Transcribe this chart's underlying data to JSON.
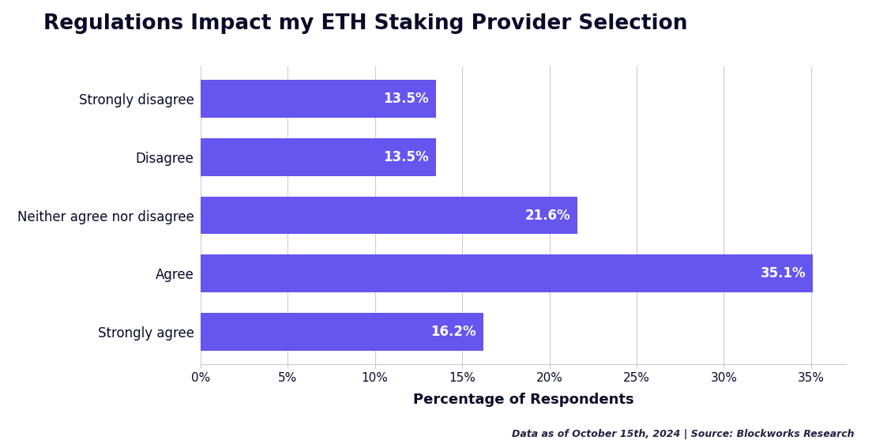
{
  "title": "Regulations Impact my ETH Staking Provider Selection",
  "categories": [
    "Strongly disagree",
    "Disagree",
    "Neither agree nor disagree",
    "Agree",
    "Strongly agree"
  ],
  "values": [
    13.5,
    13.5,
    21.6,
    35.1,
    16.2
  ],
  "bar_color": "#6655ee",
  "label_color": "#ffffff",
  "xlabel": "Percentage of Respondents",
  "xlim": [
    0,
    37
  ],
  "xtick_values": [
    0,
    5,
    10,
    15,
    20,
    25,
    30,
    35
  ],
  "footnote": "Data as of October 15th, 2024 | Source: Blockworks Research",
  "title_fontsize": 19,
  "label_fontsize": 12,
  "xlabel_fontsize": 13,
  "footnote_fontsize": 9,
  "ytick_fontsize": 12,
  "xtick_fontsize": 11,
  "background_color": "#ffffff",
  "grid_color": "#cccccc",
  "title_color": "#0a0a2a",
  "footnote_color": "#222244"
}
